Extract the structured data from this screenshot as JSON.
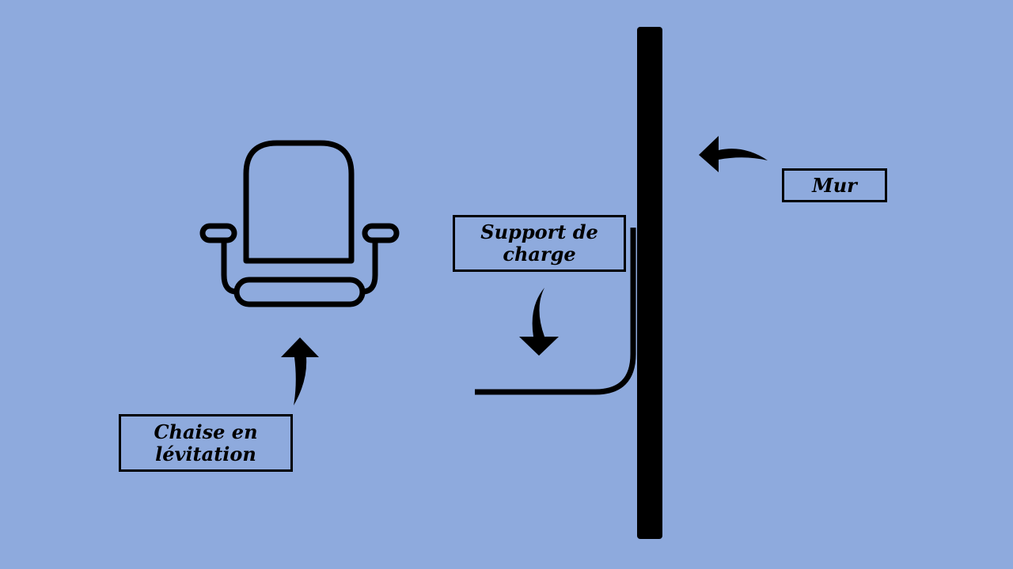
{
  "colors": {
    "background": "#8eaadd",
    "ink": "#000000"
  },
  "icons": {
    "chair": "levitating-chair-icon",
    "wall": "wall-bar",
    "bracket": "load-bracket-line",
    "arrows": "curved-arrow-icon"
  },
  "labels": {
    "mur": "Mur",
    "support": "Support de\ncharge",
    "chaise": "Chaise en\nlévitation"
  }
}
